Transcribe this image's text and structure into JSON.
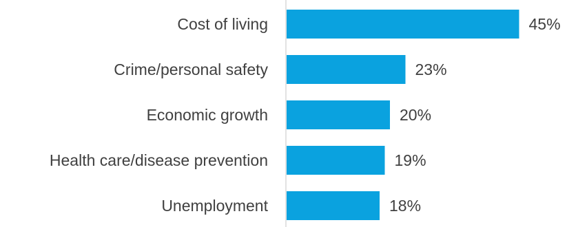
{
  "chart_data": {
    "type": "bar",
    "orientation": "horizontal",
    "categories": [
      "Cost of living",
      "Crime/personal safety",
      "Economic growth",
      "Health care/disease prevention",
      "Unemployment"
    ],
    "values": [
      45,
      23,
      20,
      19,
      18
    ],
    "value_labels": [
      "45%",
      "23%",
      "20%",
      "19%",
      "18%"
    ],
    "unit": "%",
    "xlim": [
      0,
      50
    ],
    "grid": false,
    "legend": "none",
    "bar_color": "#0AA2DF",
    "axis_color": "#D9D9D9",
    "text_color": "#404040"
  }
}
